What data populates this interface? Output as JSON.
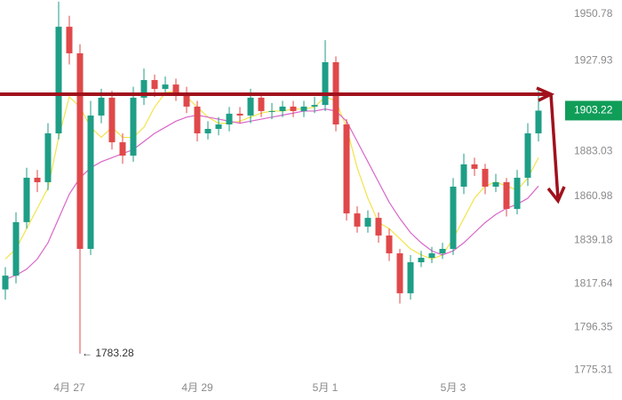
{
  "chart_data": {
    "type": "candlestick",
    "categories": [
      null,
      null,
      null,
      null,
      null,
      null,
      "4月 27",
      null,
      null,
      null,
      null,
      null,
      null,
      null,
      null,
      null,
      null,
      null,
      "4月 29",
      null,
      null,
      null,
      null,
      null,
      null,
      null,
      null,
      null,
      null,
      null,
      "5月 1",
      null,
      null,
      null,
      null,
      null,
      null,
      null,
      null,
      null,
      null,
      null,
      "5月 3",
      null,
      null,
      null,
      null,
      null,
      null,
      null,
      null
    ],
    "open": [
      1815,
      1821.8,
      1848.2,
      1870.1,
      1867.9,
      1892.0,
      1944.6,
      1931.5,
      1835.0,
      1900.8,
      1909.6,
      1887.6,
      1881.0,
      1909.6,
      1918.3,
      1913.9,
      1916.1,
      1911.7,
      1905.2,
      1892.0,
      1894.2,
      1896.4,
      1901.7,
      1900.8,
      1909.6,
      1903.0,
      1903.0,
      1905.2,
      1903.0,
      1905.2,
      1906.0,
      1927.1,
      1896.4,
      1852.5,
      1846.0,
      1850.3,
      1841.6,
      1832.8,
      1813.1,
      1828.4,
      1830.6,
      1832.8,
      1835.0,
      1865.7,
      1876.7,
      1874.5,
      1865.7,
      1867.9,
      1854.7,
      1870.1,
      1892.0
    ],
    "high": [
      1826,
      1853,
      1875,
      1874,
      1897,
      1957,
      1950,
      1936,
      1908,
      1914,
      1913,
      1892,
      1915,
      1924,
      1921,
      1920,
      1919,
      1915,
      1908,
      1898,
      1900,
      1905,
      1905,
      1914,
      1912,
      1907,
      1908,
      1908,
      1908,
      1910,
      1938,
      1930,
      1899,
      1856,
      1854,
      1853,
      1845,
      1835,
      1832,
      1834,
      1836,
      1838,
      1870,
      1882,
      1880,
      1877,
      1872,
      1870,
      1874,
      1897,
      1914
    ],
    "low": [
      1810,
      1818,
      1845,
      1863,
      1864,
      1889,
      1926,
      1783.28,
      1832,
      1897,
      1884,
      1877,
      1878,
      1906,
      1910,
      1911,
      1908,
      1902,
      1888,
      1889,
      1891,
      1893,
      1897,
      1897,
      1900,
      1899,
      1900,
      1900,
      1900,
      1902,
      1903,
      1893,
      1849,
      1843,
      1843,
      1838,
      1829,
      1808,
      1810,
      1826,
      1828,
      1830,
      1832,
      1862,
      1871,
      1862,
      1863,
      1851,
      1852,
      1866,
      1888
    ],
    "close": [
      1821.8,
      1848.2,
      1870.1,
      1867.9,
      1892.0,
      1944.6,
      1931.5,
      1835.0,
      1900.8,
      1909.6,
      1887.6,
      1881.0,
      1909.6,
      1918.3,
      1913.9,
      1916.1,
      1911.7,
      1905.2,
      1892.0,
      1894.2,
      1896.4,
      1901.7,
      1900.8,
      1909.6,
      1903.0,
      1903.0,
      1905.2,
      1903.0,
      1905.2,
      1906.0,
      1927.1,
      1896.4,
      1852.5,
      1846.0,
      1850.3,
      1841.6,
      1832.8,
      1813.1,
      1828.4,
      1830.6,
      1832.8,
      1835.0,
      1865.7,
      1876.7,
      1874.5,
      1865.7,
      1867.9,
      1854.7,
      1870.1,
      1892.0,
      1903.22
    ],
    "up_color": "#1e9e86",
    "down_color": "#e0484a",
    "ma_lines": [
      {
        "color": "#f2e44b",
        "values": [
          1830,
          1835,
          1845,
          1855,
          1865,
          1890,
          1910,
          1905,
          1895,
          1890,
          1895,
          1890,
          1890,
          1895,
          1905,
          1912,
          1913,
          1910,
          1905,
          1900,
          1897,
          1897,
          1898,
          1900,
          1902,
          1903,
          1903,
          1904,
          1904,
          1905,
          1910,
          1908,
          1895,
          1875,
          1860,
          1848,
          1845,
          1840,
          1835,
          1832,
          1830,
          1832,
          1840,
          1850,
          1860,
          1866,
          1868,
          1866,
          1864,
          1870,
          1880
        ]
      },
      {
        "color": "#d966c8",
        "values": [
          1820,
          1822,
          1825,
          1830,
          1838,
          1850,
          1862,
          1870,
          1875,
          1878,
          1880,
          1882,
          1884,
          1888,
          1892,
          1895,
          1898,
          1900,
          1901,
          1900,
          1899,
          1898,
          1897,
          1898,
          1899,
          1900,
          1901,
          1902,
          1903,
          1903,
          1904,
          1903,
          1898,
          1888,
          1878,
          1868,
          1858,
          1850,
          1843,
          1838,
          1834,
          1832,
          1834,
          1838,
          1843,
          1848,
          1852,
          1855,
          1857,
          1860,
          1866
        ]
      }
    ],
    "current_price": 1903.22,
    "current_color": "#0f9d58",
    "annotation": "← 1783.28",
    "ylim": [
      1771.4,
      1957.8
    ],
    "yticks": [
      1950.78,
      1927.93,
      1883.03,
      1860.98,
      1839.18,
      1817.64,
      1796.35,
      1775.31
    ],
    "grid": false
  }
}
